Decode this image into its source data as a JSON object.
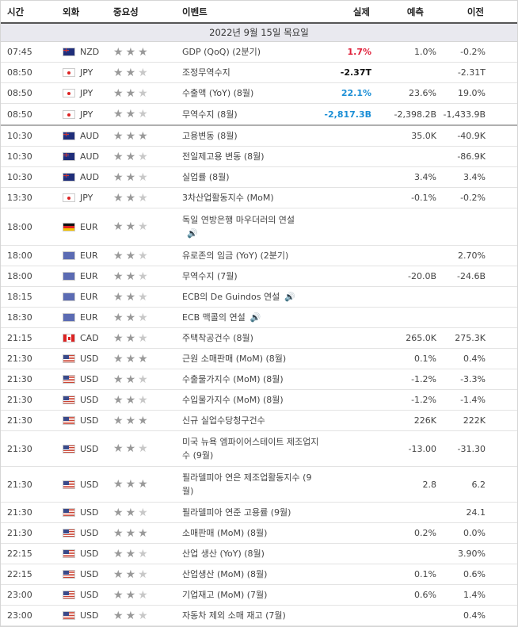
{
  "header": {
    "time": "시간",
    "currency": "외화",
    "importance": "중요성",
    "event": "이벤트",
    "actual": "실제",
    "forecast": "예측",
    "previous": "이전"
  },
  "date_label": "2022년 9월 15일 목요일",
  "colors": {
    "red": "#e0203a",
    "blue": "#1c8fd6",
    "separator": "#b0b0b0"
  },
  "rows": [
    {
      "time": "07:45",
      "currency": "NZD",
      "flag": "NZD",
      "stars": 3,
      "event": "GDP (QoQ) (2분기)",
      "actual": "1.7%",
      "actual_color": "red",
      "forecast": "1.0%",
      "previous": "-0.2%",
      "height": 25
    },
    {
      "time": "08:50",
      "currency": "JPY",
      "flag": "JPY",
      "stars": 2,
      "event": "조정무역수지",
      "actual": "-2.37T",
      "actual_color": "black",
      "forecast": "",
      "previous": "-2.31T",
      "height": 25
    },
    {
      "time": "08:50",
      "currency": "JPY",
      "flag": "JPY",
      "stars": 2,
      "event": "수출액 (YoY) (8월)",
      "actual": "22.1%",
      "actual_color": "blue",
      "forecast": "23.6%",
      "previous": "19.0%",
      "height": 25
    },
    {
      "time": "08:50",
      "currency": "JPY",
      "flag": "JPY",
      "stars": 2,
      "event": "무역수지 (8월)",
      "actual": "-2,817.3B",
      "actual_color": "blue",
      "forecast": "-2,398.2B",
      "previous": "-1,433.9B",
      "height": 26,
      "separator": true
    },
    {
      "time": "10:30",
      "currency": "AUD",
      "flag": "AUD",
      "stars": 3,
      "event": "고용변동 (8월)",
      "actual": "",
      "forecast": "35.0K",
      "previous": "-40.9K",
      "height": 25
    },
    {
      "time": "10:30",
      "currency": "AUD",
      "flag": "AUD",
      "stars": 2,
      "event": "전일제고용 변동 (8월)",
      "actual": "",
      "forecast": "",
      "previous": "-86.9K",
      "height": 25
    },
    {
      "time": "10:30",
      "currency": "AUD",
      "flag": "AUD",
      "stars": 2,
      "event": "실업률 (8월)",
      "actual": "",
      "forecast": "3.4%",
      "previous": "3.4%",
      "height": 25
    },
    {
      "time": "13:30",
      "currency": "JPY",
      "flag": "JPY",
      "stars": 2,
      "event": "3차산업활동지수 (MoM)",
      "actual": "",
      "forecast": "-0.1%",
      "previous": "-0.2%",
      "height": 25
    },
    {
      "time": "18:00",
      "currency": "EUR",
      "flag": "DEM",
      "stars": 2,
      "event": "독일 연방은행 마우더러의 연설",
      "speech": true,
      "speech_newline": true,
      "actual": "",
      "forecast": "",
      "previous": "",
      "height": 46
    },
    {
      "time": "18:00",
      "currency": "EUR",
      "flag": "EUR",
      "stars": 2,
      "event": "유로존의 임금 (YoY) (2분기)",
      "actual": "",
      "forecast": "",
      "previous": "2.70%",
      "height": 25
    },
    {
      "time": "18:00",
      "currency": "EUR",
      "flag": "EUR",
      "stars": 2,
      "event": "무역수지 (7월)",
      "actual": "",
      "forecast": "-20.0B",
      "previous": "-24.6B",
      "height": 25
    },
    {
      "time": "18:15",
      "currency": "EUR",
      "flag": "EUR",
      "stars": 2,
      "event": "ECB의 De Guindos 연설",
      "speech": true,
      "actual": "",
      "forecast": "",
      "previous": "",
      "height": 25
    },
    {
      "time": "18:30",
      "currency": "EUR",
      "flag": "EUR",
      "stars": 2,
      "event": "ECB 맥콜의 연설",
      "speech": true,
      "actual": "",
      "forecast": "",
      "previous": "",
      "height": 25
    },
    {
      "time": "21:15",
      "currency": "CAD",
      "flag": "CAD",
      "stars": 2,
      "event": "주택착공건수 (8월)",
      "actual": "",
      "forecast": "265.0K",
      "previous": "275.3K",
      "height": 25
    },
    {
      "time": "21:30",
      "currency": "USD",
      "flag": "USD",
      "stars": 3,
      "event": "근원 소매판매 (MoM) (8월)",
      "actual": "",
      "forecast": "0.1%",
      "previous": "0.4%",
      "height": 25
    },
    {
      "time": "21:30",
      "currency": "USD",
      "flag": "USD",
      "stars": 2,
      "event": "수출물가지수 (MoM) (8월)",
      "actual": "",
      "forecast": "-1.2%",
      "previous": "-3.3%",
      "height": 25
    },
    {
      "time": "21:30",
      "currency": "USD",
      "flag": "USD",
      "stars": 2,
      "event": "수입물가지수 (MoM) (8월)",
      "actual": "",
      "forecast": "-1.2%",
      "previous": "-1.4%",
      "height": 25
    },
    {
      "time": "21:30",
      "currency": "USD",
      "flag": "USD",
      "stars": 3,
      "event": "신규 실업수당청구건수",
      "actual": "",
      "forecast": "226K",
      "previous": "222K",
      "height": 25
    },
    {
      "time": "21:30",
      "currency": "USD",
      "flag": "USD",
      "stars": 2,
      "event": "미국 뉴욕 엠파이어스테이트 제조업지수 (9월)",
      "actual": "",
      "forecast": "-13.00",
      "previous": "-31.30",
      "height": 44
    },
    {
      "time": "21:30",
      "currency": "USD",
      "flag": "USD",
      "stars": 3,
      "event": "필라델피아 연은 제조업활동지수 (9월)",
      "actual": "",
      "forecast": "2.8",
      "previous": "6.2",
      "height": 44
    },
    {
      "time": "21:30",
      "currency": "USD",
      "flag": "USD",
      "stars": 2,
      "event": "필라델피아 연준 고용률 (9월)",
      "actual": "",
      "forecast": "",
      "previous": "24.1",
      "height": 25
    },
    {
      "time": "21:30",
      "currency": "USD",
      "flag": "USD",
      "stars": 3,
      "event": "소매판매 (MoM) (8월)",
      "actual": "",
      "forecast": "0.2%",
      "previous": "0.0%",
      "height": 25
    },
    {
      "time": "22:15",
      "currency": "USD",
      "flag": "USD",
      "stars": 2,
      "event": "산업 생산 (YoY) (8월)",
      "actual": "",
      "forecast": "",
      "previous": "3.90%",
      "height": 25
    },
    {
      "time": "22:15",
      "currency": "USD",
      "flag": "USD",
      "stars": 2,
      "event": "산업생산 (MoM) (8월)",
      "actual": "",
      "forecast": "0.1%",
      "previous": "0.6%",
      "height": 25
    },
    {
      "time": "23:00",
      "currency": "USD",
      "flag": "USD",
      "stars": 2,
      "event": "기업재고 (MoM) (7월)",
      "actual": "",
      "forecast": "0.6%",
      "previous": "1.4%",
      "height": 25
    },
    {
      "time": "23:00",
      "currency": "USD",
      "flag": "USD",
      "stars": 2,
      "event": "자동차 제외 소매 재고 (7월)",
      "actual": "",
      "forecast": "",
      "previous": "0.4%",
      "height": 25
    }
  ]
}
